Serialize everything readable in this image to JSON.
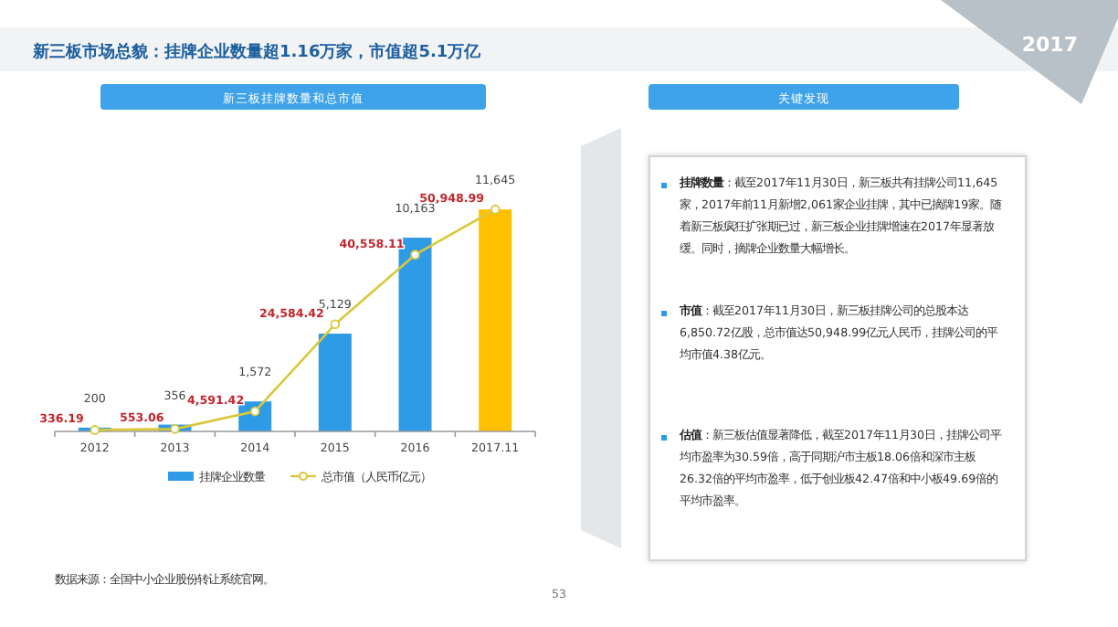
{
  "chart_data": [
    {
      "type": "bar",
      "title": "新三板市场总貌：挂牌企业数量超1.16万家，市值超5.1万亿",
      "subtitle": "新三板挂牌数量和总市值",
      "categories": [
        "2012",
        "2013",
        "2014",
        "2015",
        "2016",
        "2017.11"
      ],
      "series": [
        {
          "name": "挂牌企业数量",
          "type": "bar",
          "color": "#2e9be6",
          "colors": [
            "#2e9be6",
            "#2e9be6",
            "#2e9be6",
            "#2e9be6",
            "#2e9be6",
            "#ffc000"
          ],
          "values": [
            200,
            356,
            1572,
            5129,
            10163,
            11645
          ],
          "value_labels": [
            "200",
            "356",
            "1,572",
            "5,129",
            "10,163",
            "11,645"
          ]
        },
        {
          "name": "总市值（人民币亿元）",
          "type": "line",
          "axis": "y2",
          "color": "#d9c83a",
          "marker": "circle",
          "values": [
            336.19,
            553.06,
            4591.42,
            24584.42,
            40558.11,
            50948.99
          ],
          "value_labels": [
            "336.19",
            "553.06",
            "4,591.42",
            "24,584.42",
            "40,558.11",
            "50,948.99"
          ]
        }
      ],
      "tick_labels": "x",
      "grid": false,
      "legend": "bottom",
      "annotations": [
        "数据来源：全国中小企业股份转让系统官网。",
        "2017",
        "53"
      ]
    },
    {
      "type": "other",
      "title": "关键发现",
      "annotations": [
        "挂牌数量：截至2017年11月30日，新三板共有挂牌公司11,645家，2017年前11月新增2,061家企业挂牌，其中已摘牌19家。随着新三板疯狂扩张期已过，新三板企业挂牌增速在2017年显著放缓。同时，摘牌企业数量大幅增长。",
        "市值：截至2017年11月30日，新三板挂牌公司的总股本达6,850.72亿股，总市值达50,948.99亿元人民币，挂牌公司的平均市值4.38亿元。",
        "估值：新三板估值显著降低，截至2017年11月30日，挂牌公司平均市盈率为30.59倍，高于同期沪市主板18.06倍和深市主板26.32倍的平均市盈率，低于创业板42.47倍和中小板49.69倍的平均市盈率。"
      ]
    }
  ]
}
